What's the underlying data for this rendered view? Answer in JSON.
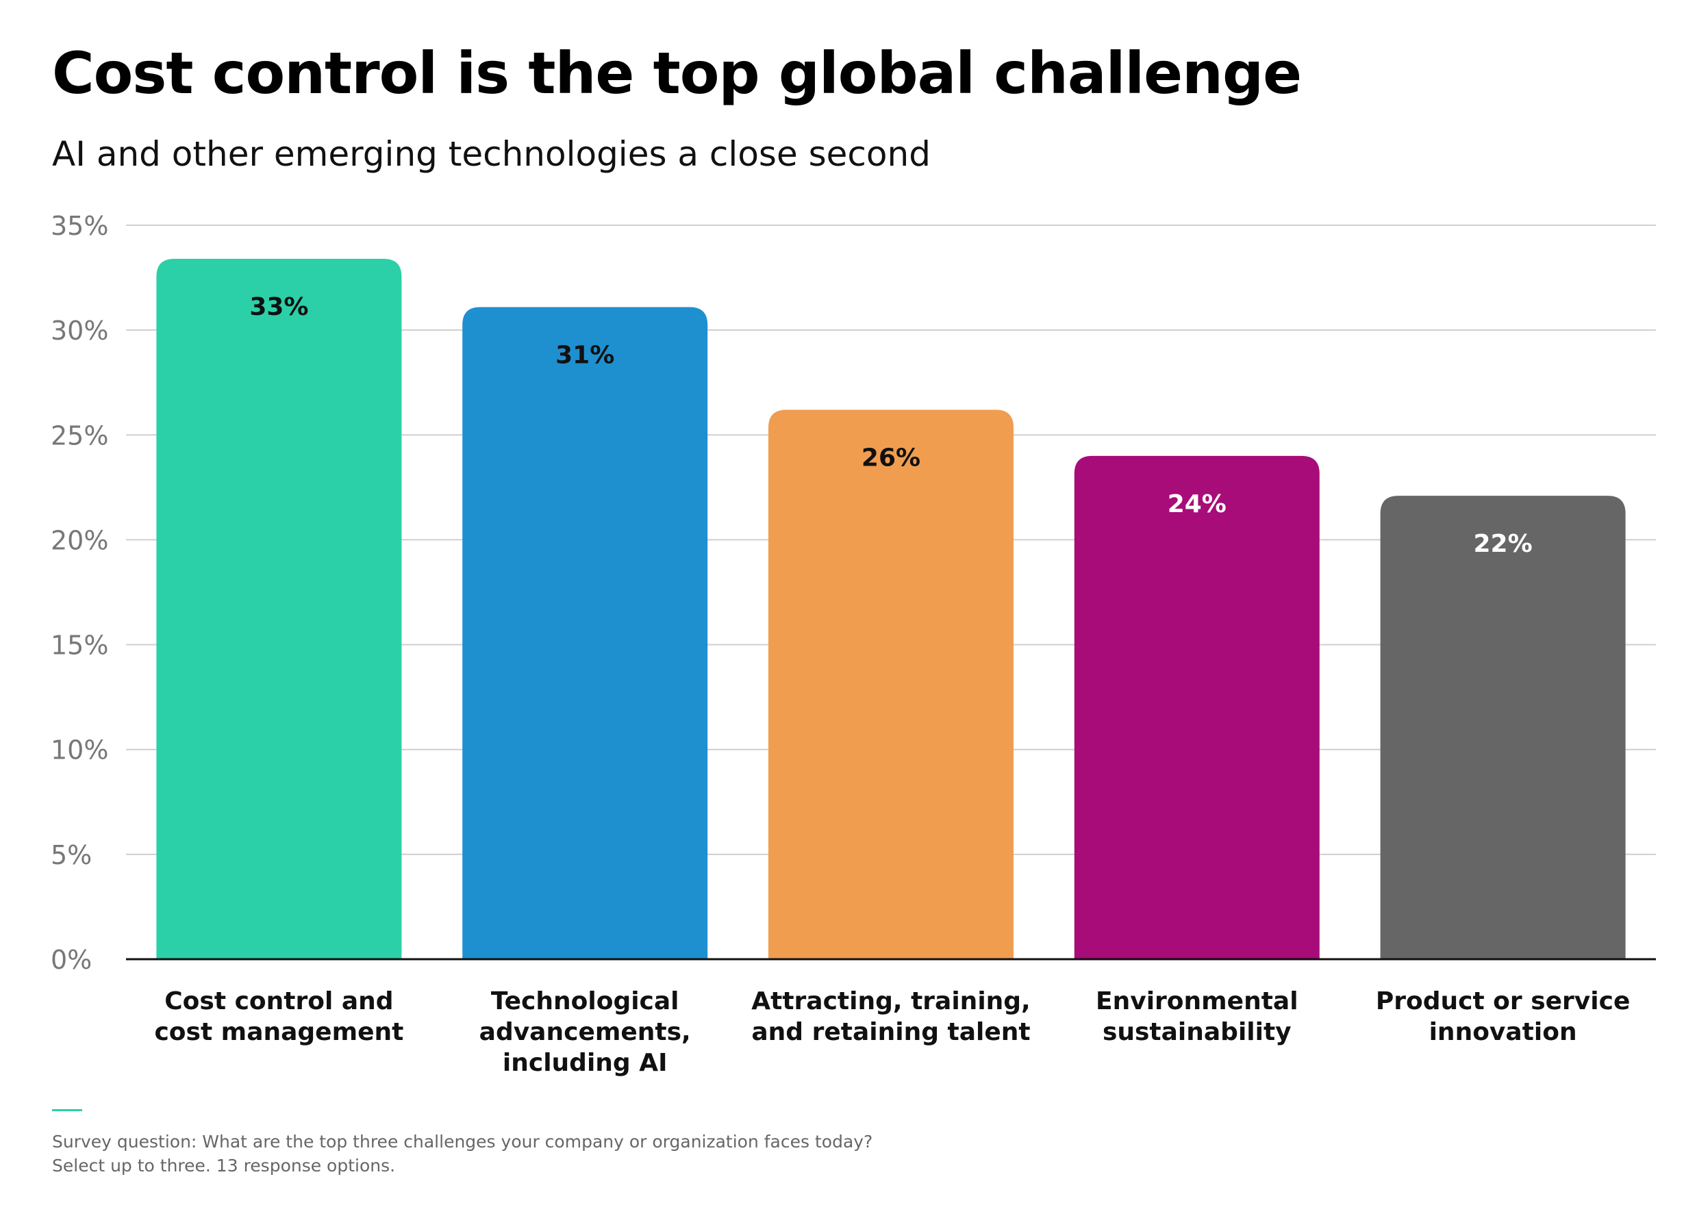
{
  "header": {
    "title": "Cost control is the top global challenge",
    "subtitle": "AI and other emerging technologies a close second"
  },
  "chart_data": {
    "type": "bar",
    "title": "Cost control is the top global challenge",
    "subtitle": "AI and other emerging technologies a close second",
    "xlabel": "",
    "ylabel": "",
    "ylim": [
      0,
      35
    ],
    "y_ticks": [
      0,
      5,
      10,
      15,
      20,
      25,
      30,
      35
    ],
    "y_tick_labels": [
      "0%",
      "5%",
      "10%",
      "15%",
      "20%",
      "25%",
      "30%",
      "35%"
    ],
    "grid": true,
    "legend": "none",
    "categories": [
      [
        "Cost control and",
        "cost management"
      ],
      [
        "Technological",
        "advancements,",
        "including AI"
      ],
      [
        "Attracting, training,",
        "and retaining talent"
      ],
      [
        "Environmental",
        "sustainability"
      ],
      [
        "Product or service",
        "innovation"
      ]
    ],
    "values": [
      33.4,
      31.1,
      26.2,
      24.0,
      22.1
    ],
    "data_labels": [
      "33%",
      "31%",
      "26%",
      "24%",
      "22%"
    ],
    "colors": [
      "#2bd0a8",
      "#1e90d0",
      "#f09d50",
      "#a70c79",
      "#666666"
    ],
    "label_colors": [
      "#111111",
      "#111111",
      "#111111",
      "#ffffff",
      "#ffffff"
    ]
  },
  "footnote": {
    "line1": "Survey question: What are the top three challenges your company or organization faces today?",
    "line2": "Select up to three. 13 response options."
  }
}
